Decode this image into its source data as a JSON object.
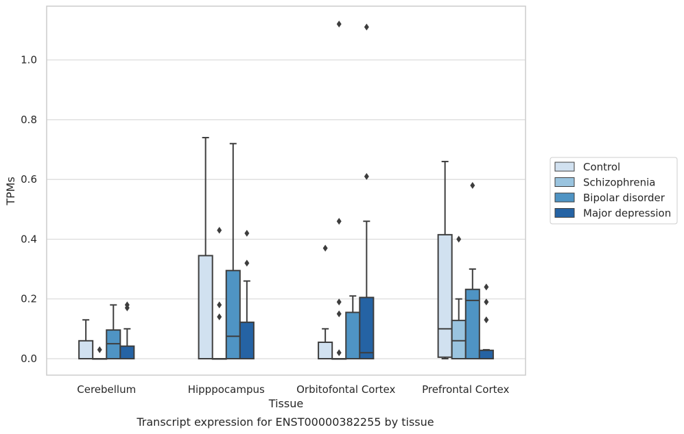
{
  "chart_data": {
    "type": "box",
    "xlabel": "Tissue",
    "ylabel": "TPMs",
    "caption": "Transcript expression for ENST00000382255 by tissue",
    "ylim": [
      -0.055,
      1.18
    ],
    "yticks": [
      "0.0",
      "0.2",
      "0.4",
      "0.6",
      "0.8",
      "1.0"
    ],
    "ytick_values": [
      0,
      0.2,
      0.4,
      0.6,
      0.8,
      1.0
    ],
    "grid": "horizontal",
    "legend_position": "right",
    "categories": [
      "Cerebellum",
      "Hipppocampus",
      "Orbitofontal Cortex",
      "Prefrontal Cortex"
    ],
    "series": [
      {
        "name": "Control",
        "color": "#d1e1f0",
        "boxes": [
          {
            "q1": 0,
            "median": 0,
            "q3": 0.06,
            "whisker_low": 0,
            "whisker_high": 0.13,
            "outliers": []
          },
          {
            "q1": 0,
            "median": 0,
            "q3": 0.345,
            "whisker_low": 0,
            "whisker_high": 0.74,
            "outliers": []
          },
          {
            "q1": 0,
            "median": 0,
            "q3": 0.055,
            "whisker_low": 0,
            "whisker_high": 0.1,
            "outliers": [
              0.37
            ]
          },
          {
            "q1": 0.005,
            "median": 0.1,
            "q3": 0.415,
            "whisker_low": 0,
            "whisker_high": 0.66,
            "outliers": []
          }
        ]
      },
      {
        "name": "Schizophrenia",
        "color": "#9ac4df",
        "boxes": [
          {
            "q1": 0,
            "median": 0,
            "q3": 0,
            "whisker_low": 0,
            "whisker_high": 0,
            "outliers": [
              0.03
            ]
          },
          {
            "q1": 0,
            "median": 0,
            "q3": 0,
            "whisker_low": 0,
            "whisker_high": 0,
            "outliers": [
              0.14,
              0.18,
              0.43
            ]
          },
          {
            "q1": 0,
            "median": 0,
            "q3": 0,
            "whisker_low": 0,
            "whisker_high": 0,
            "outliers": [
              0.02,
              0.15,
              0.19,
              0.46,
              1.12
            ]
          },
          {
            "q1": 0,
            "median": 0.06,
            "q3": 0.128,
            "whisker_low": 0,
            "whisker_high": 0.2,
            "outliers": [
              0.4
            ]
          }
        ]
      },
      {
        "name": "Bipolar disorder",
        "color": "#4f94c4",
        "boxes": [
          {
            "q1": 0,
            "median": 0.05,
            "q3": 0.096,
            "whisker_low": 0,
            "whisker_high": 0.18,
            "outliers": []
          },
          {
            "q1": 0,
            "median": 0.075,
            "q3": 0.295,
            "whisker_low": 0,
            "whisker_high": 0.72,
            "outliers": []
          },
          {
            "q1": 0,
            "median": 0,
            "q3": 0.155,
            "whisker_low": 0,
            "whisker_high": 0.21,
            "outliers": []
          },
          {
            "q1": 0,
            "median": 0.195,
            "q3": 0.232,
            "whisker_low": 0,
            "whisker_high": 0.3,
            "outliers": [
              0.58
            ]
          }
        ]
      },
      {
        "name": "Major depression",
        "color": "#2563a4",
        "boxes": [
          {
            "q1": 0,
            "median": 0,
            "q3": 0.042,
            "whisker_low": 0,
            "whisker_high": 0.1,
            "outliers": [
              0.17,
              0.18
            ]
          },
          {
            "q1": 0,
            "median": 0,
            "q3": 0.122,
            "whisker_low": 0,
            "whisker_high": 0.26,
            "outliers": [
              0.32,
              0.42
            ]
          },
          {
            "q1": 0,
            "median": 0.02,
            "q3": 0.205,
            "whisker_low": 0,
            "whisker_high": 0.46,
            "outliers": [
              0.61,
              1.11
            ]
          },
          {
            "q1": 0,
            "median": 0,
            "q3": 0.028,
            "whisker_low": 0,
            "whisker_high": 0.03,
            "outliers": [
              0.13,
              0.19,
              0.24
            ]
          }
        ]
      }
    ]
  }
}
